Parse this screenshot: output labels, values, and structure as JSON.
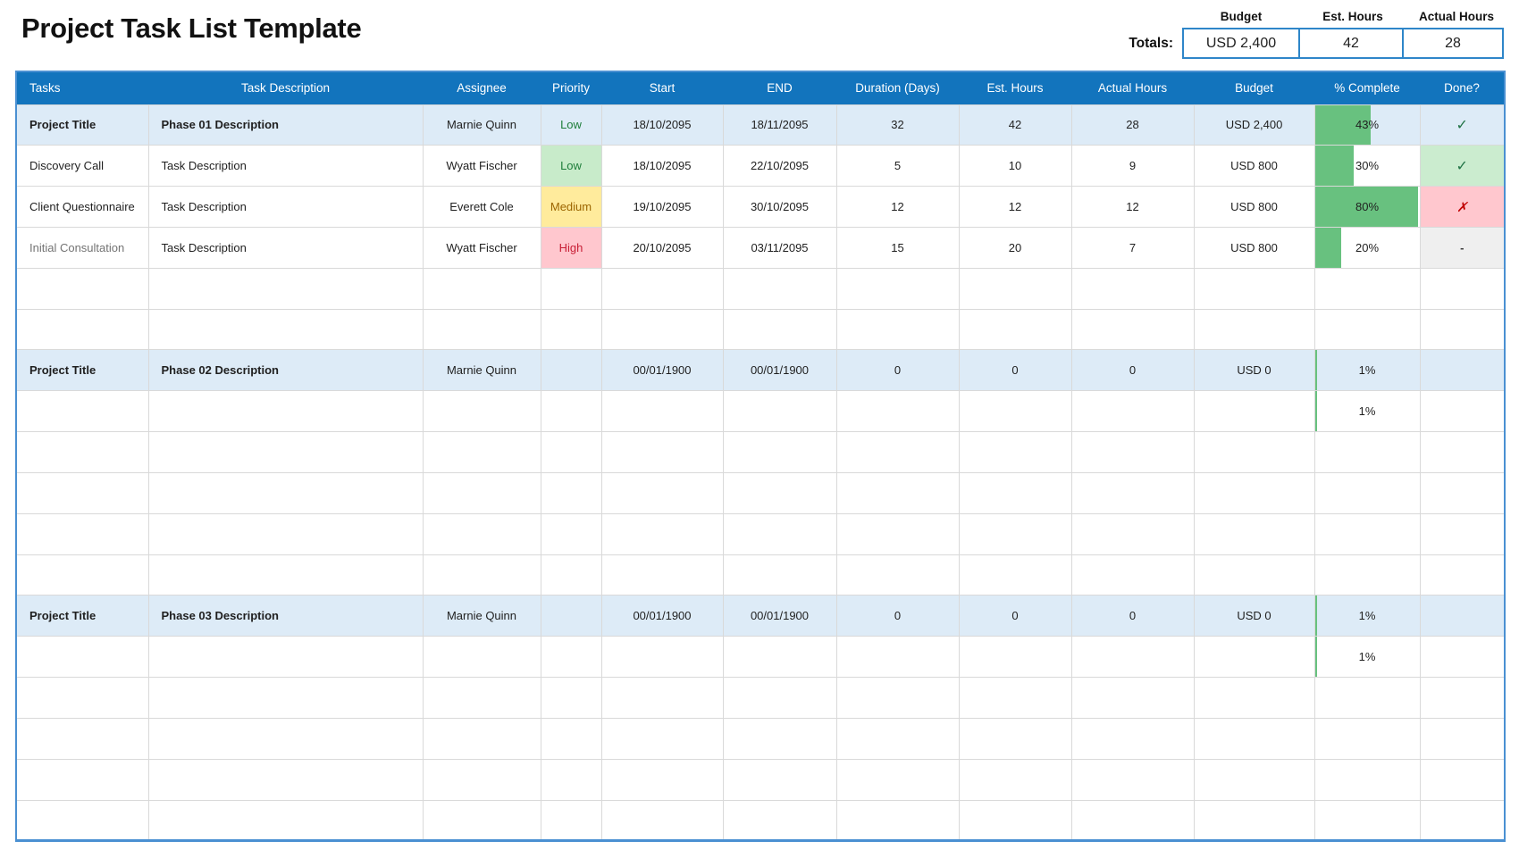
{
  "title": "Project Task List Template",
  "totals": {
    "label": "Totals:",
    "items": [
      {
        "label": "Budget",
        "value": "USD 2,400"
      },
      {
        "label": "Est. Hours",
        "value": "42"
      },
      {
        "label": "Actual Hours",
        "value": "28"
      }
    ]
  },
  "glyphs": {
    "check": "✓",
    "x": "✗",
    "dash": "-"
  },
  "colors": {
    "header_bg": "#1274bd",
    "phase_row_bg": "#ddebf7",
    "outer_border_blue": "#4a90d2",
    "totals_box_border": "#2e86c9",
    "gridline": "#d9d9d9",
    "bar_green": "#68c17f",
    "priority_low_bg": "#c8ebca",
    "priority_low_text": "#1e7d3a",
    "priority_medium_bg": "#ffeb9c",
    "priority_medium_text": "#9c6500",
    "priority_high_bg": "#ffc7ce",
    "priority_high_text": "#c81e35",
    "done_yes_bg": "#cbeccf",
    "done_yes_glyph": "#217346",
    "done_no_bg": "#ffc7ce",
    "done_no_glyph": "#c00000",
    "done_na_bg": "#efefef"
  },
  "table": {
    "columns": [
      {
        "key": "task",
        "label": "Tasks"
      },
      {
        "key": "desc",
        "label": "Task Description"
      },
      {
        "key": "assignee",
        "label": "Assignee"
      },
      {
        "key": "priority",
        "label": "Priority"
      },
      {
        "key": "start",
        "label": "Start"
      },
      {
        "key": "end",
        "label": "END"
      },
      {
        "key": "duration",
        "label": "Duration (Days)"
      },
      {
        "key": "est",
        "label": "Est. Hours"
      },
      {
        "key": "actual",
        "label": "Actual Hours"
      },
      {
        "key": "budget",
        "label": "Budget"
      },
      {
        "key": "pct",
        "label": "% Complete"
      },
      {
        "key": "done",
        "label": "Done?"
      }
    ],
    "rows": [
      {
        "phase": true,
        "task": "Project Title",
        "desc": "Phase 01 Description",
        "assignee": "Marnie Quinn",
        "priority": "Low",
        "priority_level": "low",
        "start": "18/10/2095",
        "end": "18/11/2095",
        "duration": "32",
        "est": "42",
        "actual": "28",
        "budget": "USD 2,400",
        "pct": "43%",
        "bar": 0.53,
        "done": "check"
      },
      {
        "phase": false,
        "task": "Discovery Call",
        "desc": "Task Description",
        "assignee": "Wyatt Fischer",
        "priority": "Low",
        "priority_level": "low",
        "start": "18/10/2095",
        "end": "22/10/2095",
        "duration": "5",
        "est": "10",
        "actual": "9",
        "budget": "USD 800",
        "pct": "30%",
        "bar": 0.37,
        "done": "check"
      },
      {
        "phase": false,
        "task": "Client Questionnaire",
        "desc": "Task Description",
        "assignee": "Everett Cole",
        "priority": "Medium",
        "priority_level": "medium",
        "start": "19/10/2095",
        "end": "30/10/2095",
        "duration": "12",
        "est": "12",
        "actual": "12",
        "budget": "USD 800",
        "pct": "80%",
        "bar": 0.99,
        "done": "x"
      },
      {
        "phase": false,
        "muted": true,
        "task": "Initial Consultation",
        "desc": "Task Description",
        "assignee": "Wyatt Fischer",
        "priority": "High",
        "priority_level": "high",
        "start": "20/10/2095",
        "end": "03/11/2095",
        "duration": "15",
        "est": "20",
        "actual": "7",
        "budget": "USD 800",
        "pct": "20%",
        "bar": 0.25,
        "done": "dash"
      },
      {
        "phase": false
      },
      {
        "phase": false
      },
      {
        "phase": true,
        "task": "Project Title",
        "desc": "Phase 02 Description",
        "assignee": "Marnie Quinn",
        "start": "00/01/1900",
        "end": "00/01/1900",
        "duration": "0",
        "est": "0",
        "actual": "0",
        "budget": "USD 0",
        "pct": "1%",
        "bar": 0.015,
        "done": ""
      },
      {
        "phase": false,
        "pct": "1%",
        "bar": 0.015
      },
      {
        "phase": false
      },
      {
        "phase": false
      },
      {
        "phase": false
      },
      {
        "phase": false
      },
      {
        "phase": true,
        "task": "Project Title",
        "desc": "Phase 03 Description",
        "assignee": "Marnie Quinn",
        "start": "00/01/1900",
        "end": "00/01/1900",
        "duration": "0",
        "est": "0",
        "actual": "0",
        "budget": "USD 0",
        "pct": "1%",
        "bar": 0.015,
        "done": ""
      },
      {
        "phase": false,
        "pct": "1%",
        "bar": 0.015
      },
      {
        "phase": false
      },
      {
        "phase": false
      },
      {
        "phase": false
      },
      {
        "phase": false
      }
    ]
  }
}
